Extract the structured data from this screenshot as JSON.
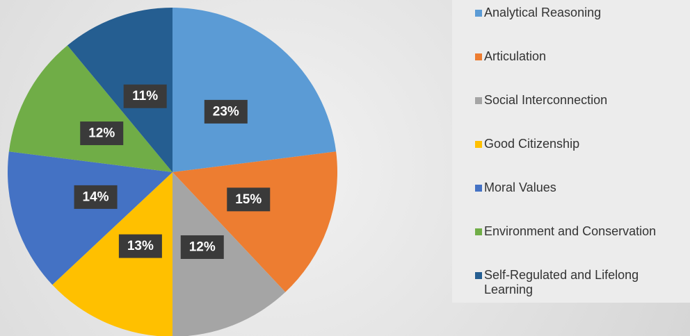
{
  "chart_data": {
    "type": "pie",
    "categories": [
      "Analytical Reasoning",
      "Articulation",
      "Social Interconnection",
      "Good Citizenship",
      "Moral Values",
      "Environment and Conservation",
      "Self-Regulated and Lifelong Learning"
    ],
    "values": [
      23,
      15,
      12,
      13,
      14,
      12,
      11
    ],
    "value_labels": [
      "23%",
      "15%",
      "12%",
      "13%",
      "14%",
      "12%",
      "11%"
    ],
    "colors": [
      "#5b9bd5",
      "#ed7d31",
      "#a5a5a5",
      "#ffc000",
      "#4472c4",
      "#70ad47",
      "#255e91"
    ],
    "legend": "right"
  }
}
